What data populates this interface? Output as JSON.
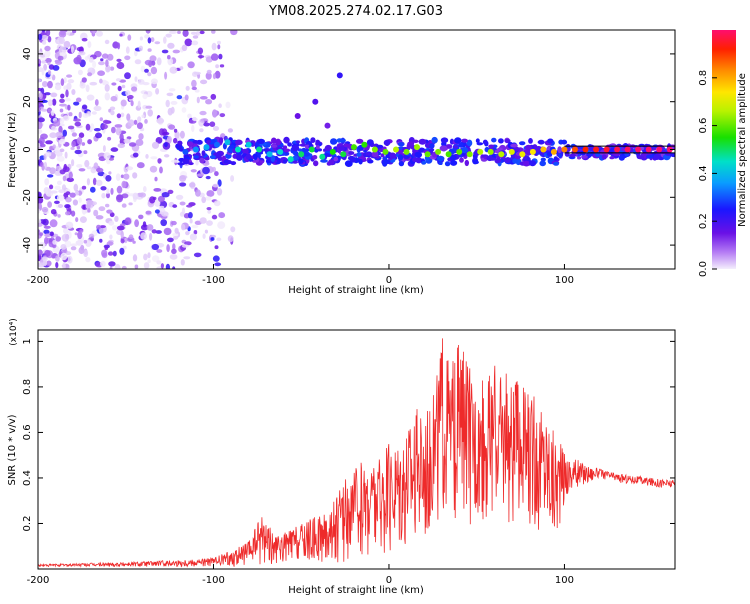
{
  "title": "YM08.2025.274.02.17.G03",
  "chart_data": [
    {
      "type": "scatter",
      "id": "spectrogram",
      "xlabel": "Height of straight line (km)",
      "ylabel": "Frequency (Hz)",
      "xlim": [
        -200,
        163
      ],
      "ylim": [
        -50,
        50
      ],
      "x_ticks": [
        -200,
        -100,
        0,
        100
      ],
      "y_ticks": [
        -40,
        -20,
        0,
        20,
        40
      ],
      "points": [
        {
          "x": -116,
          "y": -1,
          "amp": 0.3
        },
        {
          "x": -110,
          "y": 0,
          "amp": 0.35
        },
        {
          "x": -104,
          "y": 1,
          "amp": 0.38
        },
        {
          "x": -98,
          "y": 2,
          "amp": 0.32
        },
        {
          "x": -92,
          "y": 3,
          "amp": 0.4
        },
        {
          "x": -86,
          "y": 0,
          "amp": 0.45
        },
        {
          "x": -80,
          "y": 2,
          "amp": 0.42
        },
        {
          "x": -74,
          "y": 0,
          "amp": 0.48
        },
        {
          "x": -68,
          "y": -2,
          "amp": 0.4
        },
        {
          "x": -62,
          "y": -1,
          "amp": 0.44
        },
        {
          "x": -56,
          "y": -4,
          "amp": 0.46
        },
        {
          "x": -50,
          "y": -2,
          "amp": 0.5
        },
        {
          "x": -44,
          "y": 0,
          "amp": 0.52
        },
        {
          "x": -38,
          "y": -3,
          "amp": 0.48
        },
        {
          "x": -32,
          "y": -1,
          "amp": 0.55
        },
        {
          "x": -26,
          "y": -2,
          "amp": 0.52
        },
        {
          "x": -20,
          "y": 1,
          "amp": 0.58
        },
        {
          "x": -14,
          "y": 2,
          "amp": 0.56
        },
        {
          "x": -8,
          "y": 0,
          "amp": 0.62
        },
        {
          "x": -2,
          "y": -1,
          "amp": 0.6
        },
        {
          "x": 4,
          "y": 0,
          "amp": 0.66
        },
        {
          "x": 10,
          "y": -1,
          "amp": 0.62
        },
        {
          "x": 16,
          "y": 1,
          "amp": 0.64
        },
        {
          "x": 22,
          "y": -2,
          "amp": 0.6
        },
        {
          "x": 28,
          "y": -1,
          "amp": 0.62
        },
        {
          "x": 34,
          "y": -2,
          "amp": 0.58
        },
        {
          "x": 40,
          "y": -1,
          "amp": 0.6
        },
        {
          "x": 46,
          "y": -2,
          "amp": 0.62
        },
        {
          "x": 52,
          "y": -1,
          "amp": 0.66
        },
        {
          "x": 58,
          "y": -1,
          "amp": 0.64
        },
        {
          "x": 64,
          "y": -2,
          "amp": 0.66
        },
        {
          "x": 70,
          "y": -1,
          "amp": 0.7
        },
        {
          "x": 76,
          "y": -2,
          "amp": 0.72
        },
        {
          "x": 82,
          "y": -1,
          "amp": 0.74
        },
        {
          "x": 88,
          "y": 0,
          "amp": 0.78
        },
        {
          "x": 94,
          "y": -1,
          "amp": 0.8
        },
        {
          "x": 100,
          "y": 0,
          "amp": 0.84
        },
        {
          "x": 106,
          "y": 0,
          "amp": 0.88
        },
        {
          "x": 112,
          "y": 0,
          "amp": 0.92
        },
        {
          "x": 118,
          "y": 0,
          "amp": 0.94
        },
        {
          "x": 124,
          "y": 0,
          "amp": 0.96
        },
        {
          "x": 130,
          "y": 0,
          "amp": 0.98
        },
        {
          "x": 136,
          "y": 0,
          "amp": 0.99
        },
        {
          "x": 142,
          "y": 0,
          "amp": 1.0
        },
        {
          "x": 148,
          "y": 0,
          "amp": 1.0
        },
        {
          "x": 154,
          "y": 0,
          "amp": 1.0
        },
        {
          "x": 160,
          "y": 0,
          "amp": 1.0
        },
        {
          "x": -28,
          "y": 31,
          "amp": 0.22
        },
        {
          "x": -42,
          "y": 20,
          "amp": 0.18
        },
        {
          "x": -52,
          "y": 14,
          "amp": 0.15
        },
        {
          "x": -35,
          "y": 10,
          "amp": 0.14
        }
      ],
      "noise_region": {
        "x_range": [
          -200,
          -95
        ],
        "y_range": [
          -50,
          50
        ],
        "amp_range": [
          0.0,
          0.25
        ]
      }
    },
    {
      "type": "colorbar",
      "id": "amplitude-colorbar",
      "label": "Normalized spectral amplitude",
      "range": [
        0.0,
        1.0
      ],
      "ticks": [
        0.0,
        0.2,
        0.4,
        0.6,
        0.8
      ],
      "tick_labels": [
        "0.0",
        "0.2",
        "0.4",
        "0.6",
        "0.8"
      ]
    },
    {
      "type": "line",
      "id": "snr",
      "xlabel": "Height of straight line (km)",
      "ylabel": "SNR (10 * v/v)",
      "y_scale_note": "(x10⁴)",
      "xlim": [
        -200,
        163
      ],
      "ylim": [
        0,
        1.05
      ],
      "x_ticks": [
        -200,
        -100,
        0,
        100
      ],
      "y_ticks": [
        0.2,
        0.4,
        0.6,
        0.8,
        1.0
      ],
      "color": "#ee2a2a",
      "envelope": {
        "x": [
          -200,
          -150,
          -120,
          -100,
          -90,
          -80,
          -72,
          -65,
          -55,
          -45,
          -35,
          -25,
          -15,
          -5,
          5,
          15,
          20,
          25,
          30,
          35,
          40,
          50,
          60,
          70,
          80,
          90,
          95,
          100,
          105,
          110,
          115,
          120,
          130,
          140,
          150,
          163
        ],
        "lower": [
          0.01,
          0.01,
          0.01,
          0.01,
          0.01,
          0.01,
          0.02,
          0.02,
          0.02,
          0.02,
          0.02,
          0.03,
          0.04,
          0.05,
          0.08,
          0.12,
          0.1,
          0.2,
          0.15,
          0.22,
          0.18,
          0.2,
          0.22,
          0.2,
          0.18,
          0.15,
          0.1,
          0.28,
          0.33,
          0.36,
          0.38,
          0.4,
          0.38,
          0.37,
          0.36,
          0.35
        ],
        "upper": [
          0.02,
          0.03,
          0.04,
          0.05,
          0.08,
          0.12,
          0.26,
          0.14,
          0.18,
          0.22,
          0.25,
          0.4,
          0.48,
          0.5,
          0.6,
          0.7,
          0.72,
          0.75,
          1.05,
          0.88,
          1.0,
          0.82,
          0.9,
          0.85,
          0.78,
          0.7,
          0.6,
          0.52,
          0.49,
          0.47,
          0.45,
          0.44,
          0.42,
          0.41,
          0.4,
          0.39
        ]
      }
    }
  ]
}
